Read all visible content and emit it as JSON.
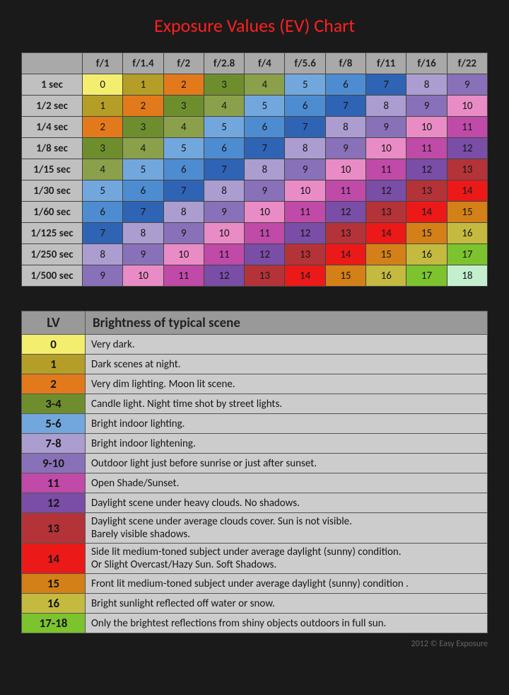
{
  "title": {
    "text": "Exposure Values (EV) Chart",
    "color": "#ff2020"
  },
  "footer": "2012 © Easy Exposure",
  "ev_colors": {
    "0": "#f3ee6e",
    "1": "#b49e27",
    "2": "#e27a1b",
    "3": "#6e8e2e",
    "4": "#8ba04a",
    "5": "#72a7dd",
    "6": "#4e8cd1",
    "7": "#2f64b5",
    "8": "#ab9dcf",
    "9": "#8971b9",
    "10": "#e98cc5",
    "11": "#c04aa8",
    "12": "#7a4da6",
    "13": "#b33338",
    "14": "#ec1919",
    "15": "#d38018",
    "16": "#c4ba3f",
    "17": "#7cc32d",
    "18": "#c3efcf"
  },
  "ev_text_dark": "#161616",
  "ev_table": {
    "col_headers": [
      "f/1",
      "f/1.4",
      "f/2",
      "f/2.8",
      "f/4",
      "f/5.6",
      "f/8",
      "f/11",
      "f/16",
      "f/22"
    ],
    "row_headers": [
      "1 sec",
      "1/2 sec",
      "1/4 sec",
      "1/8 sec",
      "1/15 sec",
      "1/30 sec",
      "1/60 sec",
      "1/125 sec",
      "1/250 sec",
      "1/500 sec"
    ],
    "start_values": [
      0,
      1,
      2,
      3,
      4,
      5,
      6,
      7,
      8,
      9
    ]
  },
  "lv_table": {
    "headers": {
      "lv": "LV",
      "desc": "Brightness of typical scene"
    },
    "rows": [
      {
        "lv": "0",
        "color_key": "0",
        "desc": "Very dark."
      },
      {
        "lv": "1",
        "color_key": "1",
        "desc": "Dark scenes at night."
      },
      {
        "lv": "2",
        "color_key": "2",
        "desc": "Very dim lighting. Moon lit scene."
      },
      {
        "lv": "3-4",
        "color_key": "3",
        "desc": "Candle light. Night time shot by street lights."
      },
      {
        "lv": "5-6",
        "color_key": "5",
        "desc": "Bright indoor lighting."
      },
      {
        "lv": "7-8",
        "color_key": "8",
        "desc": "Bright indoor lightening."
      },
      {
        "lv": "9-10",
        "color_key": "9",
        "desc": "Outdoor light just before sunrise or just after sunset."
      },
      {
        "lv": "11",
        "color_key": "11",
        "desc": "Open Shade/Sunset."
      },
      {
        "lv": "12",
        "color_key": "12",
        "desc": "Daylight scene under heavy clouds. No shadows."
      },
      {
        "lv": "13",
        "color_key": "13",
        "desc": "Daylight scene under average clouds cover. Sun is not visible.\nBarely visible shadows."
      },
      {
        "lv": "14",
        "color_key": "14",
        "desc": "Side lit medium-toned subject under average daylight (sunny) condition.\nOr Slight Overcast/Hazy Sun. Soft Shadows."
      },
      {
        "lv": "15",
        "color_key": "15",
        "desc": "Front lit medium-toned subject under average daylight (sunny) condition ."
      },
      {
        "lv": "16",
        "color_key": "16",
        "desc": "Bright sunlight reflected off water or snow."
      },
      {
        "lv": "17-18",
        "color_key": "17",
        "desc": "Only the brightest reflections from shiny objects outdoors in full sun."
      }
    ]
  }
}
